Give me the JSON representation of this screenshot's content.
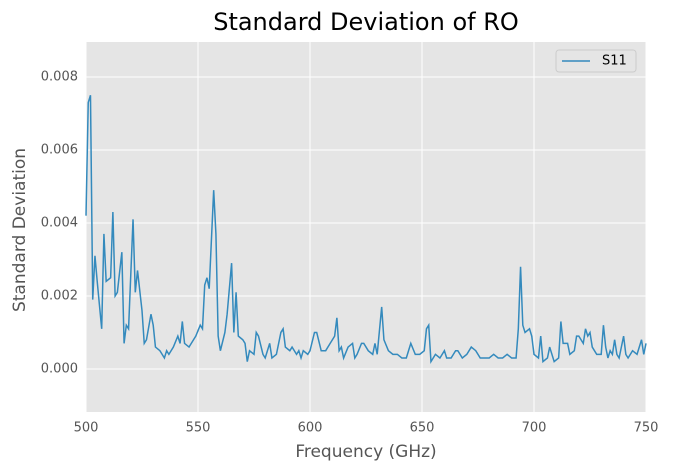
{
  "chart_data": {
    "type": "line",
    "title": "Standard Deviation of RO",
    "x_label": "Frequency (GHz)",
    "y_label": "Standard Deviation",
    "x": [
      500,
      501,
      502,
      503,
      504,
      505,
      507,
      508,
      509,
      511,
      512,
      513,
      514,
      516,
      517,
      518,
      519,
      521,
      522,
      523,
      525,
      526,
      527,
      529,
      530,
      531,
      533,
      535,
      536,
      537,
      539,
      541,
      542,
      543,
      544,
      546,
      548,
      549,
      551,
      552,
      553,
      554,
      555,
      557,
      558,
      559,
      560,
      562,
      563,
      565,
      566,
      567,
      568,
      570,
      571,
      572,
      573,
      575,
      576,
      577,
      579,
      580,
      582,
      583,
      585,
      587,
      588,
      589,
      591,
      592,
      594,
      595,
      596,
      597,
      599,
      600,
      602,
      603,
      605,
      607,
      609,
      611,
      612,
      613,
      614,
      615,
      617,
      619,
      620,
      621,
      623,
      624,
      626,
      628,
      629,
      630,
      632,
      633,
      635,
      637,
      639,
      641,
      643,
      645,
      647,
      649,
      651,
      652,
      653,
      654,
      656,
      658,
      660,
      661,
      663,
      665,
      666,
      668,
      670,
      672,
      674,
      676,
      678,
      680,
      682,
      684,
      686,
      688,
      690,
      692,
      693,
      694,
      695,
      696,
      698,
      699,
      700,
      702,
      703,
      704,
      706,
      707,
      709,
      711,
      712,
      713,
      715,
      716,
      718,
      719,
      720,
      722,
      723,
      724,
      725,
      726,
      728,
      730,
      731,
      732,
      733,
      734,
      735,
      736,
      737,
      738,
      740,
      741,
      742,
      744,
      746,
      748,
      749,
      750
    ],
    "series": [
      {
        "name": "S11",
        "color": "#348abd",
        "values": [
          0.0042,
          0.0073,
          0.0075,
          0.0019,
          0.0031,
          0.0024,
          0.0011,
          0.0037,
          0.0024,
          0.0025,
          0.0043,
          0.002,
          0.0021,
          0.0032,
          0.0007,
          0.0012,
          0.0011,
          0.0041,
          0.0021,
          0.0027,
          0.0016,
          0.0007,
          0.0008,
          0.0015,
          0.0012,
          0.0006,
          0.0005,
          0.0003,
          0.0005,
          0.0004,
          0.0006,
          0.0009,
          0.0007,
          0.0013,
          0.0007,
          0.0006,
          0.0008,
          0.0009,
          0.0012,
          0.0011,
          0.0023,
          0.0025,
          0.0022,
          0.0049,
          0.0037,
          0.0009,
          0.0005,
          0.001,
          0.0015,
          0.0029,
          0.001,
          0.0021,
          0.0009,
          0.0008,
          0.0007,
          0.0002,
          0.0005,
          0.0004,
          0.001,
          0.0009,
          0.0004,
          0.0003,
          0.0007,
          0.0003,
          0.0004,
          0.001,
          0.0011,
          0.0006,
          0.0005,
          0.0006,
          0.0004,
          0.0005,
          0.0003,
          0.0005,
          0.0004,
          0.0005,
          0.001,
          0.001,
          0.0005,
          0.0005,
          0.0007,
          0.0009,
          0.0014,
          0.0005,
          0.0006,
          0.0003,
          0.0006,
          0.0007,
          0.0003,
          0.0004,
          0.0007,
          0.0007,
          0.0005,
          0.0004,
          0.0007,
          0.0004,
          0.0017,
          0.0008,
          0.0005,
          0.0004,
          0.0004,
          0.0003,
          0.0003,
          0.0007,
          0.0004,
          0.0004,
          0.0005,
          0.0011,
          0.0012,
          0.0002,
          0.0004,
          0.0003,
          0.0005,
          0.0003,
          0.0003,
          0.0005,
          0.0005,
          0.0003,
          0.0004,
          0.0006,
          0.0005,
          0.0003,
          0.0003,
          0.0003,
          0.0004,
          0.0003,
          0.0003,
          0.0004,
          0.0003,
          0.0003,
          0.0011,
          0.0028,
          0.0012,
          0.001,
          0.0011,
          0.0009,
          0.0004,
          0.0003,
          0.0009,
          0.0002,
          0.0003,
          0.0006,
          0.0002,
          0.0003,
          0.0013,
          0.0007,
          0.0007,
          0.0004,
          0.0005,
          0.0009,
          0.0009,
          0.0007,
          0.0011,
          0.0009,
          0.001,
          0.0006,
          0.0004,
          0.0004,
          0.0012,
          0.0006,
          0.0003,
          0.0005,
          0.0004,
          0.0008,
          0.0004,
          0.0003,
          0.0009,
          0.0004,
          0.0003,
          0.0005,
          0.0004,
          0.0008,
          0.0004,
          0.0007
        ]
      }
    ],
    "xlim": [
      500,
      750
    ],
    "xticks": [
      500,
      550,
      600,
      650,
      700,
      750
    ],
    "ylim": [
      -0.00118,
      0.00896
    ],
    "yticks": [
      {
        "value": 0,
        "label": "0.000"
      },
      {
        "value": 0.002,
        "label": "0.002"
      },
      {
        "value": 0.004,
        "label": "0.004"
      },
      {
        "value": 0.006,
        "label": "0.006"
      },
      {
        "value": 0.008,
        "label": "0.008"
      }
    ],
    "grid": true,
    "legend": "upper right"
  }
}
